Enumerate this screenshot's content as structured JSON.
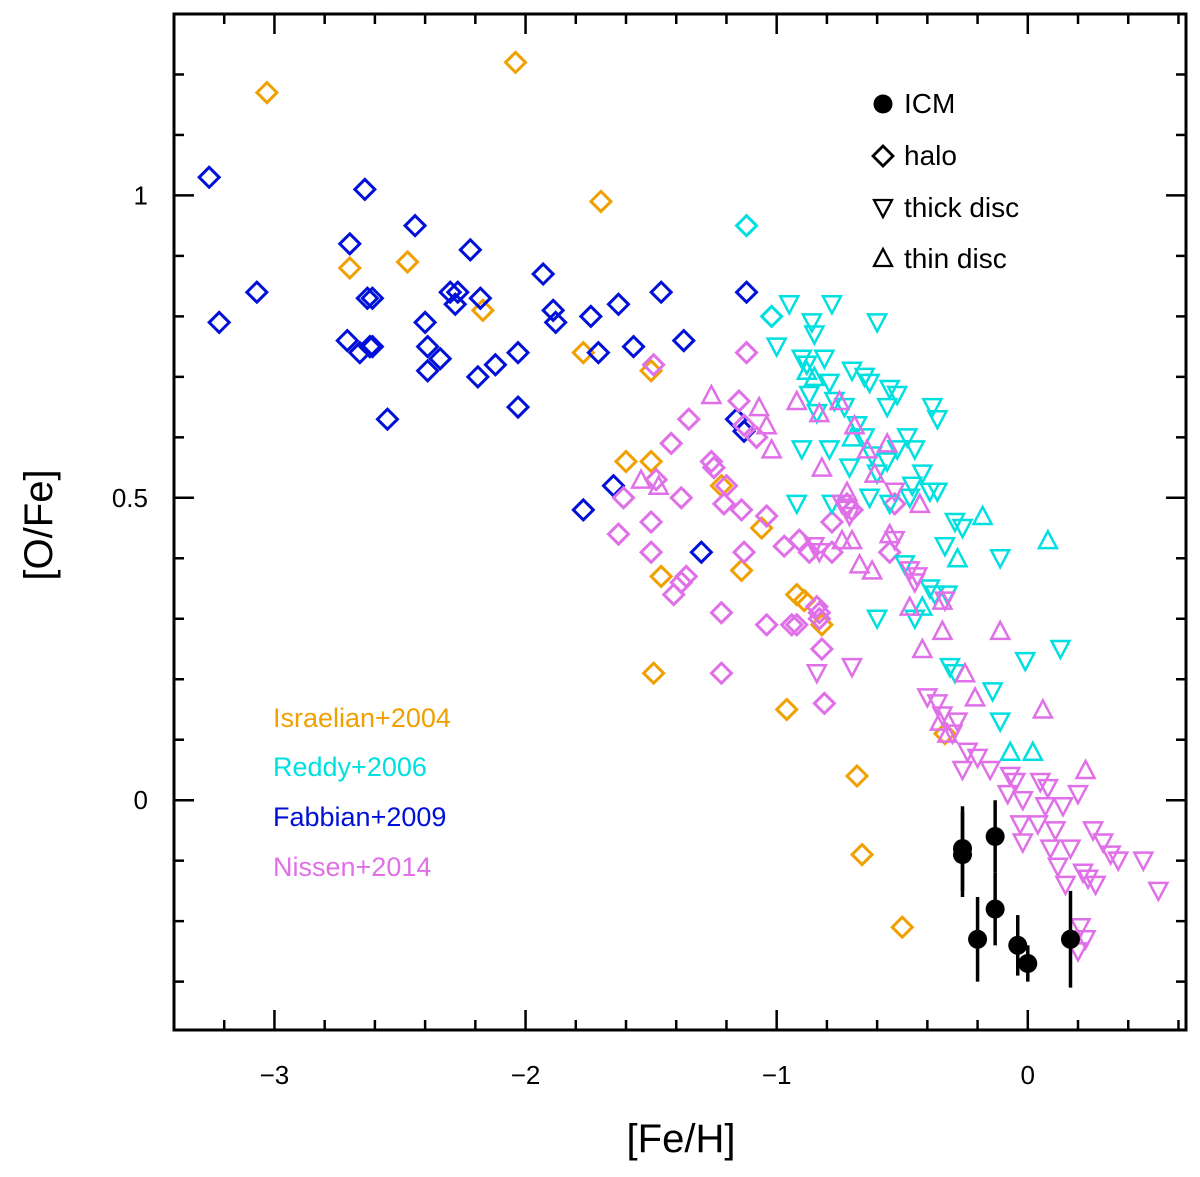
{
  "chart_data": {
    "type": "scatter",
    "xlabel": "[Fe/H]",
    "ylabel": "[O/Fe]",
    "xlim": [
      -3.4,
      0.63
    ],
    "ylim": [
      -0.38,
      1.3
    ],
    "x_ticks": [
      -3,
      -2,
      -1,
      0
    ],
    "x_tick_labels": [
      "−3",
      "−2",
      "−1",
      "0"
    ],
    "y_ticks": [
      0,
      0.5,
      1
    ],
    "y_tick_labels": [
      "0",
      "0.5",
      "1"
    ],
    "x_minor_step": 0.2,
    "y_minor_step": 0.1,
    "grid": false,
    "colors": {
      "Israelian+2004": "#f0a000",
      "Reddy+2006": "#00e0e0",
      "Fabbian+2009": "#0010d8",
      "Nissen+2014": "#e070e8",
      "ICM": "#000000"
    },
    "shape_legend": {
      "placement": "top-right",
      "entries": [
        {
          "label": "ICM",
          "marker": "filled-circle"
        },
        {
          "label": "halo",
          "marker": "diamond"
        },
        {
          "label": "thick disc",
          "marker": "triangle-down"
        },
        {
          "label": "thin disc",
          "marker": "triangle-up"
        }
      ]
    },
    "source_legend": {
      "placement": "bottom-left",
      "entries": [
        "Israelian+2004",
        "Reddy+2006",
        "Fabbian+2009",
        "Nissen+2014"
      ]
    },
    "series": [
      {
        "name": "ICM",
        "marker": "filled-circle",
        "color": "#000000",
        "points": [
          {
            "x": -0.26,
            "y": -0.08,
            "yerr": 0.07
          },
          {
            "x": -0.26,
            "y": -0.09,
            "yerr": 0.07
          },
          {
            "x": -0.13,
            "y": -0.06,
            "yerr": 0.06
          },
          {
            "x": -0.13,
            "y": -0.18,
            "yerr": 0.06
          },
          {
            "x": -0.2,
            "y": -0.23,
            "yerr": 0.07
          },
          {
            "x": -0.04,
            "y": -0.24,
            "yerr": 0.05
          },
          {
            "x": 0.0,
            "y": -0.27,
            "yerr": 0.03
          },
          {
            "x": 0.17,
            "y": -0.23,
            "yerr": 0.08
          }
        ]
      },
      {
        "name": "Israelian+2004",
        "marker": "diamond",
        "color": "#f0a000",
        "points": [
          [
            -3.03,
            1.17
          ],
          [
            -2.04,
            1.22
          ],
          [
            -1.7,
            0.99
          ],
          [
            -2.7,
            0.88
          ],
          [
            -2.47,
            0.89
          ],
          [
            -2.17,
            0.81
          ],
          [
            -1.77,
            0.74
          ],
          [
            -1.5,
            0.71
          ],
          [
            -1.6,
            0.56
          ],
          [
            -1.5,
            0.56
          ],
          [
            -1.22,
            0.52
          ],
          [
            -1.06,
            0.45
          ],
          [
            -1.46,
            0.37
          ],
          [
            -1.14,
            0.38
          ],
          [
            -0.92,
            0.34
          ],
          [
            -0.89,
            0.33
          ],
          [
            -0.82,
            0.29
          ],
          [
            -1.49,
            0.21
          ],
          [
            -0.96,
            0.15
          ],
          [
            -0.33,
            0.11
          ],
          [
            -0.68,
            0.04
          ],
          [
            -0.66,
            -0.09
          ],
          [
            -0.5,
            -0.21
          ]
        ]
      },
      {
        "name": "Reddy+2006 halo",
        "marker": "diamond",
        "color": "#00e0e0",
        "points": [
          [
            -1.12,
            0.95
          ],
          [
            -1.02,
            0.8
          ]
        ]
      },
      {
        "name": "Fabbian+2009",
        "marker": "diamond",
        "color": "#0010d8",
        "points": [
          [
            -3.26,
            1.03
          ],
          [
            -3.22,
            0.79
          ],
          [
            -3.07,
            0.84
          ],
          [
            -2.64,
            1.01
          ],
          [
            -2.44,
            0.95
          ],
          [
            -2.7,
            0.92
          ],
          [
            -2.22,
            0.91
          ],
          [
            -1.93,
            0.87
          ],
          [
            -2.63,
            0.83
          ],
          [
            -2.61,
            0.83
          ],
          [
            -2.3,
            0.84
          ],
          [
            -2.27,
            0.84
          ],
          [
            -2.18,
            0.83
          ],
          [
            -1.89,
            0.81
          ],
          [
            -1.88,
            0.79
          ],
          [
            -2.4,
            0.79
          ],
          [
            -2.28,
            0.82
          ],
          [
            -1.74,
            0.8
          ],
          [
            -1.63,
            0.82
          ],
          [
            -1.46,
            0.84
          ],
          [
            -1.12,
            0.84
          ],
          [
            -2.71,
            0.76
          ],
          [
            -2.66,
            0.74
          ],
          [
            -2.62,
            0.75
          ],
          [
            -2.61,
            0.75
          ],
          [
            -2.39,
            0.75
          ],
          [
            -2.34,
            0.73
          ],
          [
            -2.39,
            0.71
          ],
          [
            -2.12,
            0.72
          ],
          [
            -2.03,
            0.74
          ],
          [
            -1.71,
            0.74
          ],
          [
            -1.57,
            0.75
          ],
          [
            -1.37,
            0.76
          ],
          [
            -2.19,
            0.7
          ],
          [
            -2.03,
            0.65
          ],
          [
            -2.55,
            0.63
          ],
          [
            -1.16,
            0.63
          ],
          [
            -1.13,
            0.61
          ],
          [
            -1.65,
            0.52
          ],
          [
            -1.77,
            0.48
          ],
          [
            -1.3,
            0.41
          ]
        ]
      },
      {
        "name": "Nissen+2014 halo",
        "marker": "diamond",
        "color": "#e070e8",
        "points": [
          [
            -1.12,
            0.74
          ],
          [
            -1.49,
            0.72
          ],
          [
            -1.15,
            0.66
          ],
          [
            -1.13,
            0.62
          ],
          [
            -1.08,
            0.6
          ],
          [
            -1.35,
            0.63
          ],
          [
            -1.42,
            0.59
          ],
          [
            -1.26,
            0.56
          ],
          [
            -1.25,
            0.55
          ],
          [
            -1.2,
            0.52
          ],
          [
            -1.21,
            0.49
          ],
          [
            -1.14,
            0.48
          ],
          [
            -1.48,
            0.53
          ],
          [
            -1.61,
            0.5
          ],
          [
            -1.38,
            0.5
          ],
          [
            -1.04,
            0.47
          ],
          [
            -0.97,
            0.42
          ],
          [
            -0.91,
            0.43
          ],
          [
            -0.87,
            0.41
          ],
          [
            -0.78,
            0.41
          ],
          [
            -0.78,
            0.46
          ],
          [
            -0.7,
            0.48
          ],
          [
            -0.72,
            0.49
          ],
          [
            -0.55,
            0.41
          ],
          [
            -0.53,
            0.49
          ],
          [
            -1.63,
            0.44
          ],
          [
            -1.5,
            0.46
          ],
          [
            -1.5,
            0.41
          ],
          [
            -1.36,
            0.37
          ],
          [
            -1.38,
            0.36
          ],
          [
            -1.41,
            0.34
          ],
          [
            -1.13,
            0.41
          ],
          [
            -1.22,
            0.31
          ],
          [
            -1.04,
            0.29
          ],
          [
            -0.94,
            0.29
          ],
          [
            -0.92,
            0.29
          ],
          [
            -0.84,
            0.32
          ],
          [
            -0.83,
            0.31
          ],
          [
            -0.83,
            0.3
          ],
          [
            -0.82,
            0.25
          ],
          [
            -1.22,
            0.21
          ],
          [
            -0.81,
            0.16
          ]
        ]
      },
      {
        "name": "Reddy+2006 thick disc",
        "marker": "triangle-down",
        "color": "#00e0e0",
        "points": [
          [
            -0.95,
            0.82
          ],
          [
            -0.86,
            0.79
          ],
          [
            -0.85,
            0.77
          ],
          [
            -0.78,
            0.82
          ],
          [
            -0.6,
            0.79
          ],
          [
            -1.0,
            0.75
          ],
          [
            -0.9,
            0.73
          ],
          [
            -0.88,
            0.72
          ],
          [
            -0.81,
            0.73
          ],
          [
            -0.7,
            0.71
          ],
          [
            -0.65,
            0.7
          ],
          [
            -0.63,
            0.69
          ],
          [
            -0.79,
            0.69
          ],
          [
            -0.87,
            0.67
          ],
          [
            -0.77,
            0.66
          ],
          [
            -0.84,
            0.64
          ],
          [
            -0.73,
            0.65
          ],
          [
            -0.68,
            0.62
          ],
          [
            -0.55,
            0.68
          ],
          [
            -0.52,
            0.67
          ],
          [
            -0.56,
            0.65
          ],
          [
            -0.38,
            0.65
          ],
          [
            -0.36,
            0.63
          ],
          [
            -0.48,
            0.6
          ],
          [
            -0.52,
            0.58
          ],
          [
            -0.45,
            0.58
          ],
          [
            -0.9,
            0.58
          ],
          [
            -0.79,
            0.58
          ],
          [
            -0.65,
            0.6
          ],
          [
            -0.62,
            0.57
          ],
          [
            -0.71,
            0.55
          ],
          [
            -0.6,
            0.54
          ],
          [
            -0.56,
            0.56
          ],
          [
            -0.42,
            0.54
          ],
          [
            -0.36,
            0.51
          ],
          [
            -0.39,
            0.51
          ],
          [
            -0.47,
            0.5
          ],
          [
            -0.46,
            0.52
          ],
          [
            -0.92,
            0.49
          ],
          [
            -0.78,
            0.49
          ],
          [
            -0.63,
            0.5
          ],
          [
            -0.55,
            0.49
          ],
          [
            -0.29,
            0.46
          ],
          [
            -0.26,
            0.45
          ],
          [
            -0.33,
            0.42
          ],
          [
            -0.49,
            0.39
          ],
          [
            -0.11,
            0.4
          ],
          [
            -0.39,
            0.35
          ],
          [
            -0.37,
            0.34
          ],
          [
            -0.32,
            0.34
          ],
          [
            -0.6,
            0.3
          ],
          [
            -0.45,
            0.3
          ],
          [
            -0.01,
            0.23
          ],
          [
            -0.31,
            0.22
          ],
          [
            0.13,
            0.25
          ],
          [
            -0.14,
            0.18
          ],
          [
            -0.29,
            0.21
          ],
          [
            -0.11,
            0.13
          ]
        ]
      },
      {
        "name": "Reddy+2006 thin disc",
        "marker": "triangle-up",
        "color": "#00e0e0",
        "points": [
          [
            -0.88,
            0.71
          ],
          [
            -0.85,
            0.7
          ],
          [
            -0.7,
            0.6
          ],
          [
            -0.18,
            0.47
          ],
          [
            0.08,
            0.43
          ],
          [
            -0.28,
            0.4
          ],
          [
            -0.42,
            0.32
          ],
          [
            -0.07,
            0.08
          ],
          [
            0.02,
            0.08
          ]
        ]
      },
      {
        "name": "Nissen+2014 thick disc",
        "marker": "triangle-down",
        "color": "#e070e8",
        "points": [
          [
            -0.53,
            0.51
          ],
          [
            -0.74,
            0.49
          ],
          [
            -0.72,
            0.48
          ],
          [
            -0.71,
            0.47
          ],
          [
            -0.53,
            0.43
          ],
          [
            -0.85,
            0.42
          ],
          [
            -0.83,
            0.41
          ],
          [
            -0.47,
            0.38
          ],
          [
            -0.44,
            0.37
          ],
          [
            -0.45,
            0.36
          ],
          [
            -0.33,
            0.33
          ],
          [
            -0.7,
            0.22
          ],
          [
            -0.84,
            0.21
          ],
          [
            -0.4,
            0.17
          ],
          [
            -0.36,
            0.16
          ],
          [
            -0.34,
            0.14
          ],
          [
            -0.28,
            0.13
          ],
          [
            -0.3,
            0.11
          ],
          [
            -0.24,
            0.08
          ],
          [
            -0.2,
            0.07
          ],
          [
            -0.26,
            0.05
          ],
          [
            -0.15,
            0.05
          ],
          [
            -0.07,
            0.04
          ],
          [
            -0.05,
            0.03
          ],
          [
            0.05,
            0.03
          ],
          [
            0.08,
            0.02
          ],
          [
            -0.08,
            0.01
          ],
          [
            -0.02,
            0.0
          ],
          [
            0.07,
            -0.01
          ],
          [
            0.14,
            -0.01
          ],
          [
            0.2,
            0.01
          ],
          [
            0.04,
            -0.04
          ],
          [
            -0.03,
            -0.04
          ],
          [
            0.11,
            -0.05
          ],
          [
            0.26,
            -0.05
          ],
          [
            0.3,
            -0.07
          ],
          [
            -0.02,
            -0.07
          ],
          [
            0.09,
            -0.08
          ],
          [
            0.17,
            -0.08
          ],
          [
            0.33,
            -0.09
          ],
          [
            0.36,
            -0.1
          ],
          [
            0.46,
            -0.1
          ],
          [
            0.12,
            -0.11
          ],
          [
            0.22,
            -0.12
          ],
          [
            0.24,
            -0.13
          ],
          [
            0.15,
            -0.14
          ],
          [
            0.27,
            -0.14
          ],
          [
            0.52,
            -0.15
          ],
          [
            0.21,
            -0.21
          ],
          [
            0.23,
            -0.23
          ],
          [
            0.2,
            -0.25
          ]
        ]
      },
      {
        "name": "Nissen+2014 thin disc",
        "marker": "triangle-up",
        "color": "#e070e8",
        "points": [
          [
            -1.26,
            0.67
          ],
          [
            -1.07,
            0.65
          ],
          [
            -0.92,
            0.66
          ],
          [
            -1.04,
            0.62
          ],
          [
            -1.02,
            0.58
          ],
          [
            -0.83,
            0.64
          ],
          [
            -0.75,
            0.66
          ],
          [
            -0.69,
            0.62
          ],
          [
            -0.64,
            0.58
          ],
          [
            -0.56,
            0.59
          ],
          [
            -1.54,
            0.53
          ],
          [
            -1.47,
            0.52
          ],
          [
            -0.82,
            0.55
          ],
          [
            -0.61,
            0.54
          ],
          [
            -0.72,
            0.51
          ],
          [
            -0.43,
            0.49
          ],
          [
            -0.55,
            0.44
          ],
          [
            -0.7,
            0.43
          ],
          [
            -0.74,
            0.43
          ],
          [
            -0.67,
            0.39
          ],
          [
            -0.62,
            0.38
          ],
          [
            -0.47,
            0.32
          ],
          [
            -0.34,
            0.33
          ],
          [
            -0.34,
            0.28
          ],
          [
            -0.11,
            0.28
          ],
          [
            -0.42,
            0.25
          ],
          [
            -0.25,
            0.21
          ],
          [
            -0.21,
            0.17
          ],
          [
            0.06,
            0.15
          ],
          [
            -0.35,
            0.13
          ],
          [
            -0.32,
            0.11
          ],
          [
            0.23,
            0.05
          ]
        ]
      }
    ]
  }
}
